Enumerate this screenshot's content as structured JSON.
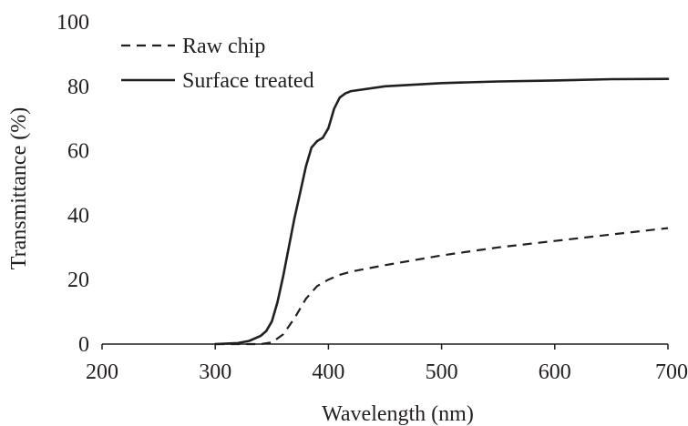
{
  "chart_data": {
    "type": "line",
    "title": "",
    "xlabel": "Wavelength  (nm)",
    "ylabel": "Transmittance  (%)",
    "xlim": [
      200,
      700
    ],
    "ylim": [
      0,
      100
    ],
    "x_ticks": [
      200,
      300,
      400,
      500,
      600,
      700
    ],
    "y_ticks": [
      0,
      20,
      40,
      60,
      80,
      100
    ],
    "grid": false,
    "legend_position": "top-left",
    "series": [
      {
        "name": "Raw chip",
        "style": "dashed",
        "color": "#231f20",
        "x": [
          300,
          340,
          350,
          360,
          370,
          380,
          390,
          400,
          410,
          420,
          450,
          500,
          550,
          600,
          650,
          700
        ],
        "y": [
          0,
          0,
          0.5,
          3,
          8,
          14,
          18,
          20,
          21.5,
          22.5,
          24.5,
          27.5,
          30,
          32,
          34,
          36
        ]
      },
      {
        "name": "Surface treated",
        "style": "solid",
        "color": "#231f20",
        "x": [
          300,
          320,
          330,
          340,
          345,
          350,
          355,
          360,
          365,
          370,
          375,
          380,
          385,
          390,
          395,
          400,
          405,
          410,
          415,
          420,
          450,
          500,
          550,
          600,
          650,
          700
        ],
        "y": [
          0,
          0.3,
          1,
          2.5,
          4,
          7,
          13,
          21,
          30,
          39,
          47,
          55,
          61,
          63,
          64,
          67,
          73,
          76.5,
          77.8,
          78.5,
          80,
          81,
          81.5,
          81.8,
          82.2,
          82.3
        ]
      }
    ]
  }
}
